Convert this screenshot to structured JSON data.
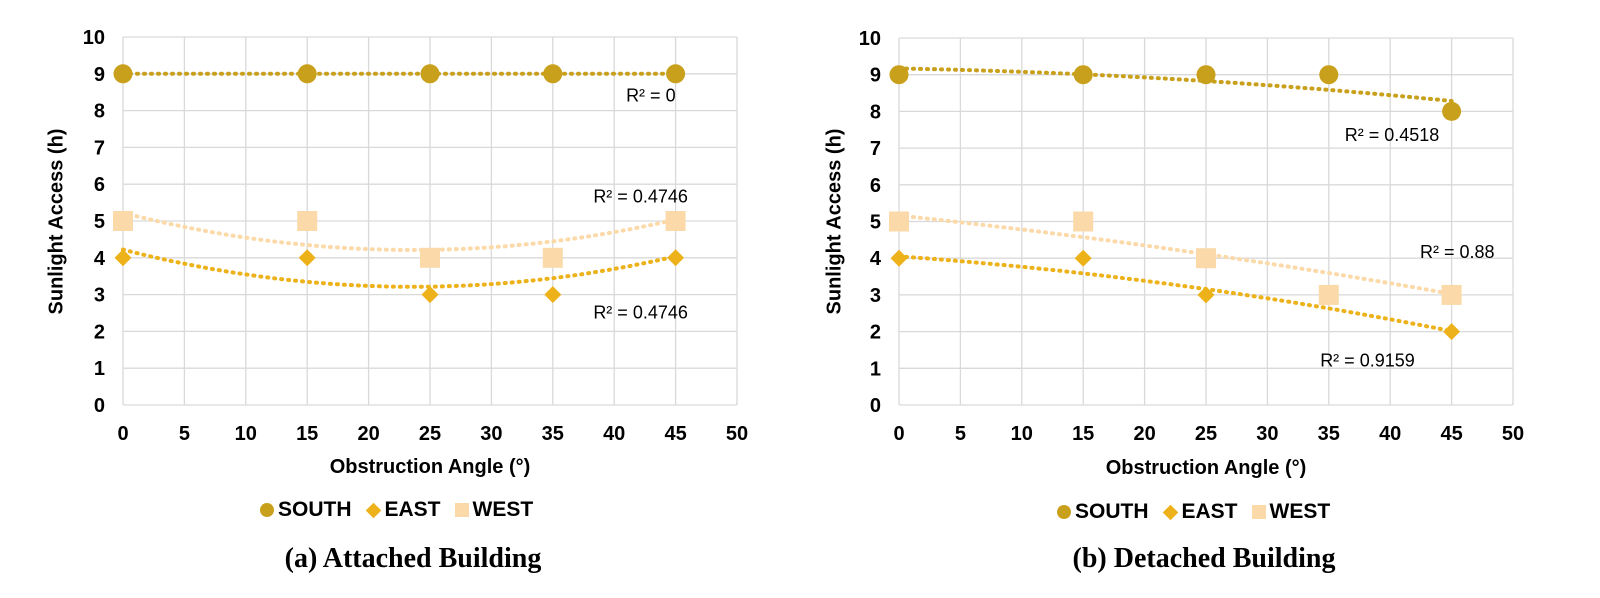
{
  "colors": {
    "south": "#C9A01B",
    "east": "#EDB21A",
    "west": "#FBD9A8",
    "grid": "#D9D9D9"
  },
  "chart_data": [
    {
      "type": "scatter",
      "caption": "(a) Attached Building",
      "xlabel": "Obstruction Angle (°)",
      "ylabel": "Sunlight Access (h)",
      "xlim": [
        0,
        50
      ],
      "ylim": [
        0,
        10
      ],
      "xticks": [
        "0",
        "5",
        "10",
        "15",
        "20",
        "25",
        "30",
        "35",
        "40",
        "45",
        "50"
      ],
      "yticks": [
        "0",
        "1",
        "2",
        "3",
        "4",
        "5",
        "6",
        "7",
        "8",
        "9",
        "10"
      ],
      "grid": true,
      "legend_position": "bottom",
      "series": [
        {
          "name": "SOUTH",
          "marker": "circle",
          "x": [
            0,
            15,
            25,
            35,
            45
          ],
          "y": [
            9,
            9,
            9,
            9,
            9
          ],
          "trend": [
            0,
            0,
            9
          ],
          "r2_label": "R² = 0",
          "r2_at": [
            45,
            8.25
          ]
        },
        {
          "name": "EAST",
          "marker": "diamond",
          "x": [
            0,
            15,
            25,
            35,
            45
          ],
          "y": [
            4,
            4,
            3,
            3,
            4
          ],
          "trend": [
            0.00181,
            -0.0855,
            4.222
          ],
          "r2_label": "R² = 0.4746",
          "r2_at": [
            46,
            2.35
          ]
        },
        {
          "name": "WEST",
          "marker": "square",
          "x": [
            0,
            15,
            25,
            35,
            45
          ],
          "y": [
            5,
            5,
            4,
            4,
            5
          ],
          "trend": [
            0.00181,
            -0.0855,
            5.222
          ],
          "r2_label": "R² = 0.4746",
          "r2_at": [
            46,
            5.5
          ]
        }
      ]
    },
    {
      "type": "scatter",
      "caption": "(b) Detached Building",
      "xlabel": "Obstruction Angle (°)",
      "ylabel": "Sunlight Access (h)",
      "xlim": [
        0,
        50
      ],
      "ylim": [
        0,
        10
      ],
      "xticks": [
        "0",
        "5",
        "10",
        "15",
        "20",
        "25",
        "30",
        "35",
        "40",
        "45",
        "50"
      ],
      "yticks": [
        "0",
        "1",
        "2",
        "3",
        "4",
        "5",
        "6",
        "7",
        "8",
        "9",
        "10"
      ],
      "grid": true,
      "legend_position": "bottom",
      "series": [
        {
          "name": "SOUTH",
          "marker": "circle",
          "x": [
            0,
            15,
            25,
            35,
            45
          ],
          "y": [
            9,
            9,
            9,
            9,
            8
          ],
          "trend": [
            -0.0003,
            -0.0062,
            9.17
          ],
          "r2_label": "R² = 0.4518",
          "r2_at": [
            44,
            7.2
          ]
        },
        {
          "name": "EAST",
          "marker": "diamond",
          "x": [
            0,
            15,
            25,
            35,
            45
          ],
          "y": [
            4,
            4,
            3,
            3,
            2
          ],
          "trend": [
            -0.00048,
            -0.0237,
            4.05
          ],
          "r2_label": "R² = 0.9159",
          "r2_at": [
            42,
            1.05
          ]
        },
        {
          "name": "WEST",
          "marker": "square",
          "x": [
            0,
            15,
            25,
            35,
            45
          ],
          "y": [
            5,
            5,
            4,
            3,
            3
          ],
          "trend": [
            -0.00027,
            -0.0353,
            5.162
          ],
          "r2_label": "R² = 0.88",
          "r2_at": [
            48.5,
            4.0
          ]
        }
      ]
    }
  ]
}
